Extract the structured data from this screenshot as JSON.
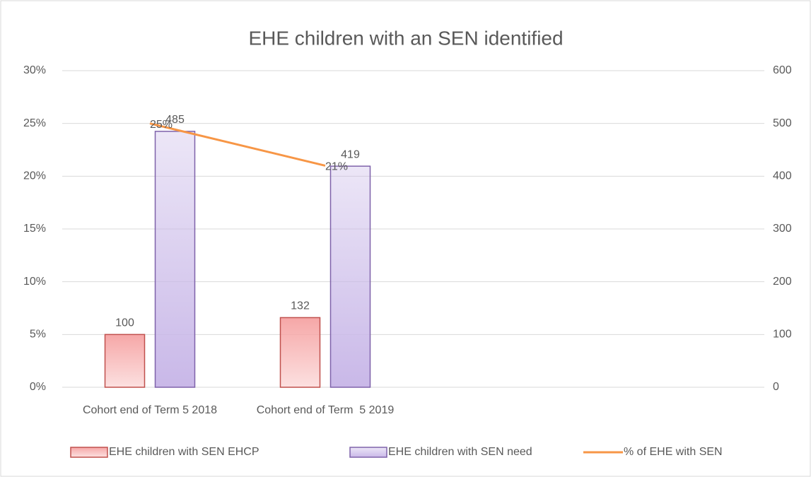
{
  "chart_data": {
    "type": "bar_line",
    "title": "EHE children with an SEN identified",
    "categories": [
      "Cohort end of Term 5 2018",
      "Cohort end of Term  5 2019",
      null,
      null
    ],
    "ylim": [
      0,
      30
    ],
    "yticks": [
      {
        "value": 0,
        "label": "0%"
      },
      {
        "value": 5,
        "label": "5%"
      },
      {
        "value": 10,
        "label": "10%"
      },
      {
        "value": 15,
        "label": "15%"
      },
      {
        "value": 20,
        "label": "20%"
      },
      {
        "value": 25,
        "label": "25%"
      },
      {
        "value": 30,
        "label": "30%"
      }
    ],
    "y2lim": [
      0,
      600
    ],
    "y2ticks": [
      0,
      100,
      200,
      300,
      400,
      500,
      600
    ],
    "grid": true,
    "legend": "bottom",
    "series": [
      {
        "name": "EHE children with SEN EHCP",
        "type": "bar",
        "axis": "y2",
        "color": "#f6a7a7",
        "edgecolor": "#c0504d",
        "values": [
          100,
          132,
          null,
          null
        ]
      },
      {
        "name": "EHE children with SEN need",
        "type": "bar",
        "axis": "y2",
        "color": "#c9b8e8",
        "edgecolor": "#7f62aa",
        "values": [
          485,
          419,
          null,
          null
        ]
      },
      {
        "name": "% of EHE with SEN",
        "type": "line",
        "axis": "y",
        "color": "#f79646",
        "values": [
          25,
          21,
          null,
          null
        ],
        "value_labels": [
          "25%",
          "21%",
          null,
          null
        ]
      }
    ]
  }
}
